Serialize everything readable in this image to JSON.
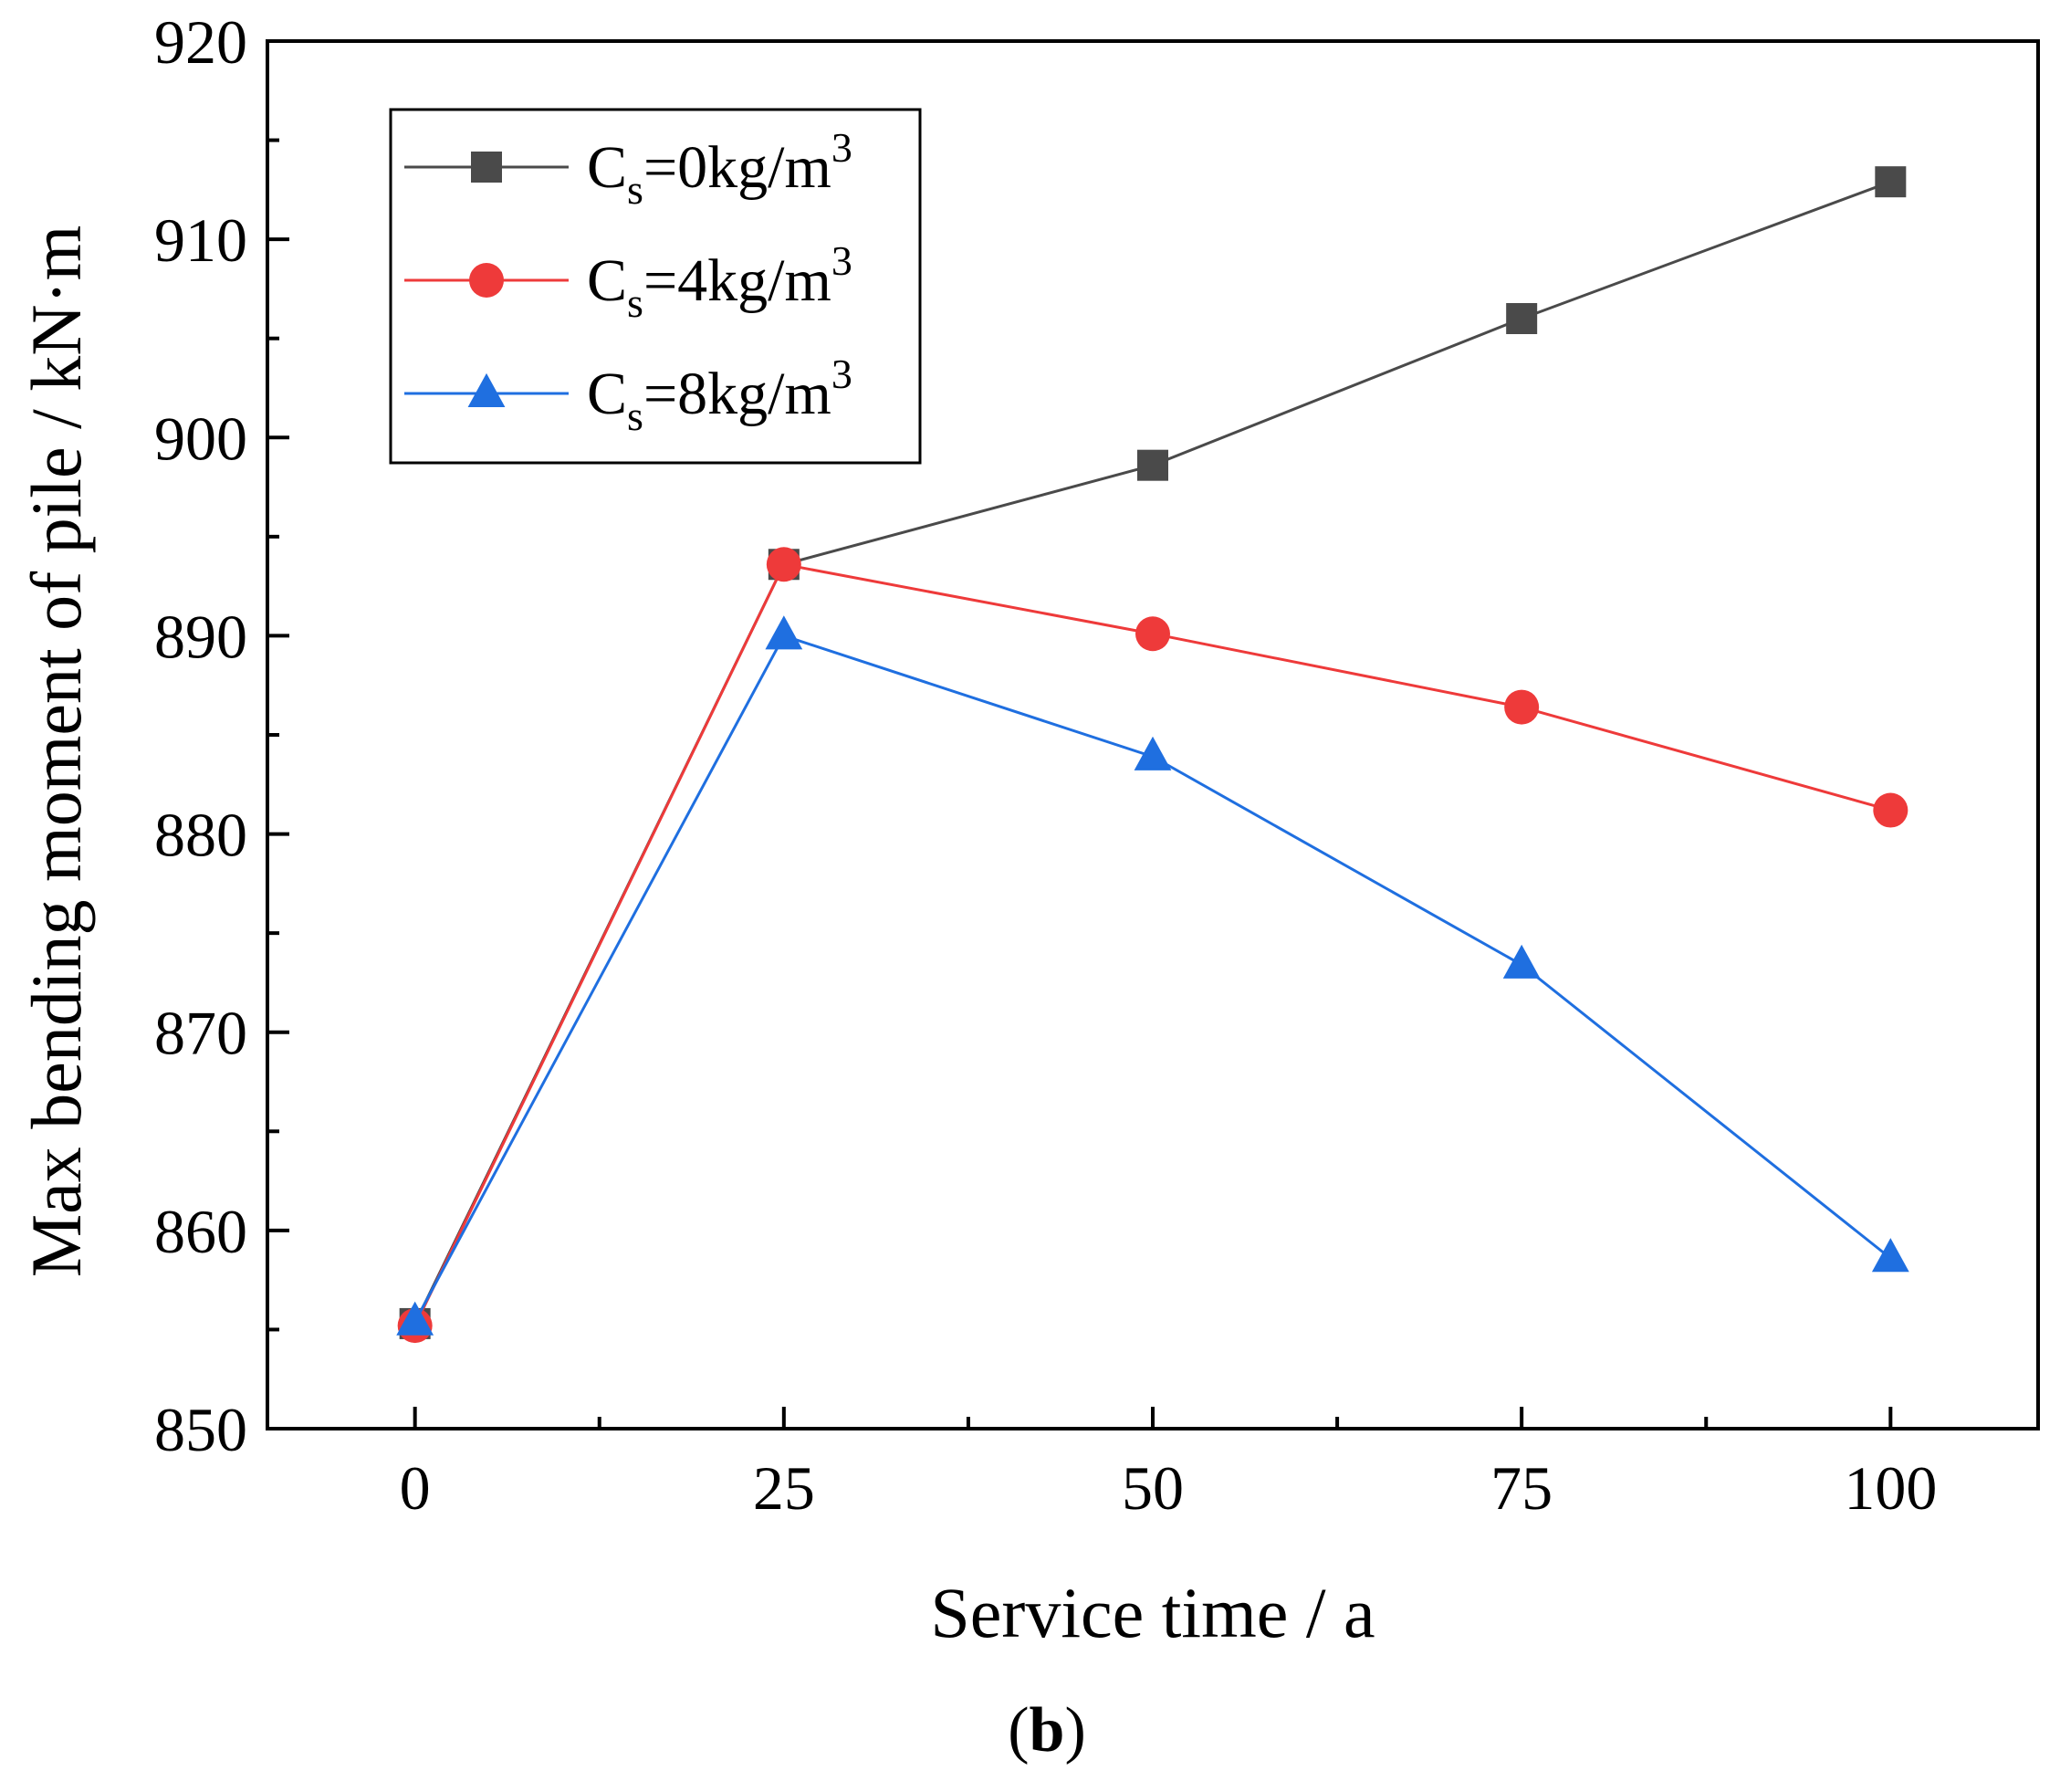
{
  "chart_data": {
    "type": "line",
    "xlabel": "Service time / a",
    "ylabel": "Max bending moment of pile / kN·m",
    "panel_label": {
      "open": "(",
      "letter": "b",
      "close": ")"
    },
    "x": [
      0,
      25,
      50,
      75,
      100
    ],
    "xlim": [
      -10,
      110
    ],
    "ylim": [
      850,
      920
    ],
    "x_ticks": [
      0,
      25,
      50,
      75,
      100
    ],
    "y_ticks": [
      850,
      860,
      870,
      880,
      890,
      900,
      910,
      920
    ],
    "grid": false,
    "legend_position": "top-left",
    "series": [
      {
        "name": "Cs=0kg/m3",
        "label_main": "C",
        "label_sub": "s",
        "label_rest": "=0kg/m",
        "label_sup": "3",
        "marker": "square",
        "color": "#4a4a4a",
        "values": [
          855.3,
          893.6,
          898.6,
          906.0,
          912.9
        ]
      },
      {
        "name": "Cs=4kg/m3",
        "label_main": "C",
        "label_sub": "s",
        "label_rest": "=4kg/m",
        "label_sup": "3",
        "marker": "circle",
        "color": "#ee3a3a",
        "values": [
          855.2,
          893.6,
          890.1,
          886.4,
          881.2
        ]
      },
      {
        "name": "Cs=8kg/m3",
        "label_main": "C",
        "label_sub": "s",
        "label_rest": "=8kg/m",
        "label_sup": "3",
        "marker": "triangle",
        "color": "#1f6fe0",
        "values": [
          855.4,
          890.0,
          883.9,
          873.4,
          858.6
        ]
      }
    ]
  }
}
